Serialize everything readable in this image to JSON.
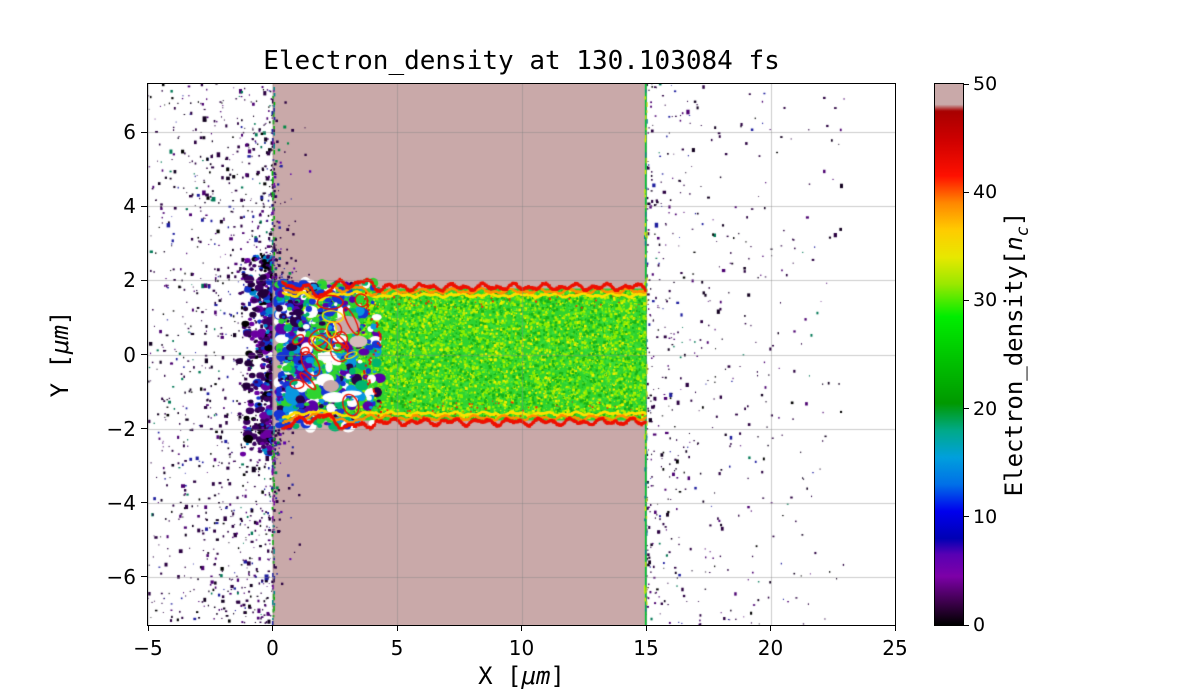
{
  "figure": {
    "background": "#ffffff"
  },
  "title": "Electron_density at 130.103084 fs",
  "chart_data": {
    "type": "heatmap",
    "title": "Electron_density at 130.103084 fs",
    "xlabel": "X [μm]",
    "xlabel_parts": {
      "prefix": "X [",
      "math": "μm",
      "suffix": "]"
    },
    "ylabel": "Y [μm]",
    "ylabel_parts": {
      "prefix": "Y [",
      "math": "μm",
      "suffix": "]"
    },
    "xlim": [
      -5,
      25
    ],
    "ylim": [
      -7.3,
      7.3
    ],
    "xticks": [
      -5,
      0,
      5,
      10,
      15,
      20,
      25
    ],
    "yticks": [
      -6,
      -4,
      -2,
      0,
      2,
      4,
      6
    ],
    "grid": true,
    "grid_color": "#828282",
    "annotations": {
      "time_fs": 130.103084
    },
    "colorbar": {
      "label": "Electron_density[n_c]",
      "label_parts": {
        "prefix": "Electron_density[",
        "symbol": "n",
        "subscript": "c",
        "suffix": "]"
      },
      "ticks": [
        0,
        10,
        20,
        30,
        40,
        50
      ],
      "vmin": 0,
      "vmax": 50,
      "colormap": "nipy_spectral-like",
      "stops": [
        [
          0.0,
          "#000000"
        ],
        [
          0.04,
          "#3a0048"
        ],
        [
          0.09,
          "#7d00a8"
        ],
        [
          0.13,
          "#5a00b4"
        ],
        [
          0.16,
          "#0000b4"
        ],
        [
          0.21,
          "#0000ee"
        ],
        [
          0.26,
          "#0070e8"
        ],
        [
          0.31,
          "#00a0dd"
        ],
        [
          0.36,
          "#00aa88"
        ],
        [
          0.41,
          "#009900"
        ],
        [
          0.5,
          "#00c800"
        ],
        [
          0.57,
          "#00ee00"
        ],
        [
          0.63,
          "#9ae800"
        ],
        [
          0.68,
          "#e8e800"
        ],
        [
          0.73,
          "#ffcc00"
        ],
        [
          0.78,
          "#ff8800"
        ],
        [
          0.83,
          "#ff1100"
        ],
        [
          0.9,
          "#cc0000"
        ],
        [
          0.95,
          "#a80000"
        ],
        [
          0.962,
          "#c9a9a9"
        ],
        [
          1.0,
          "#c9a9a9"
        ]
      ]
    },
    "regions": {
      "slab": {
        "x0": 0,
        "x1": 15,
        "value": ">50",
        "color": "#c9a9a9"
      },
      "channel": {
        "x0": 0.45,
        "x1": 15,
        "y0": -1.78,
        "y1": 1.78,
        "value": "~30",
        "base_color": "#2fd32f"
      },
      "channel_edge": {
        "value": "~45",
        "red": "#ee1100",
        "orange": "#ff9100",
        "yellow": "#ffe000"
      },
      "turbulent_zone": {
        "x0": 0.25,
        "x1": 4.3,
        "y0": -2.05,
        "y1": 2.05,
        "value": "5-30"
      },
      "left_blowoff": {
        "x0": -5,
        "x1": 0.25,
        "value": "0-5"
      },
      "right_blowoff": {
        "x0": 14.95,
        "x1": 23,
        "value": "0-5"
      },
      "slab_edge_green": "#00c832"
    },
    "palettes": {
      "channel_speckle": [
        "#90ee00",
        "#c6ee00",
        "#f0f000",
        "#17b117",
        "#3bdd3b"
      ],
      "turbulent": [
        "#1535d5",
        "#0897e0",
        "#5a00a8",
        "#28004a",
        "#ffffff",
        "#00b46e",
        "#2fd32f"
      ],
      "blowoff": [
        "#2a0040",
        "#12001f",
        "#4b0070",
        "#1e1e9e",
        "#007755",
        "#000000"
      ]
    }
  },
  "axes": {
    "frame_color": "#000000",
    "tick_color": "#000000"
  }
}
